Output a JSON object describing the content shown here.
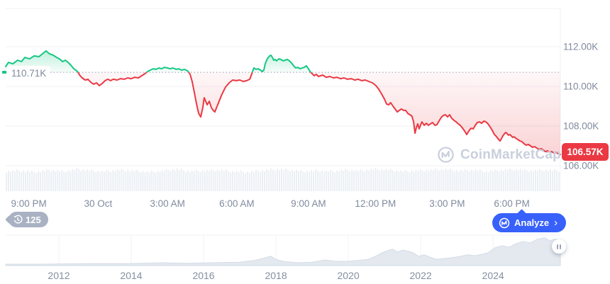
{
  "watermark": {
    "text": "CoinMarketCap"
  },
  "history_badge": {
    "count": "125"
  },
  "analyze_button": {
    "label": "Analyze",
    "chevron": "›"
  },
  "colors": {
    "up": "#16C784",
    "down": "#EA3943",
    "accent_blue": "#3861FB",
    "badge_gray": "#A9B2C3",
    "axis_text": "#808A9D",
    "grid": "#F0F2F6",
    "baseline_dotted": "#A3ADBF",
    "watermark": "#C9CFDC",
    "volume": "#EBEFF4",
    "navigator_fill": "#E4E9F0",
    "navigator_stroke": "#D5DCE6"
  },
  "chart_data": {
    "type": "line",
    "main": {
      "type": "area-line",
      "unit": "K",
      "baseline_price": 110.71,
      "baseline_label": "110.71K",
      "last_price": 106.57,
      "last_price_label": "106.57K",
      "grid": "horizontal-only",
      "ylim": [
        104.7,
        113.9
      ],
      "t_range_hours": [
        0,
        24
      ],
      "y_ticks": [
        {
          "label": "112.00K",
          "price": 112
        },
        {
          "label": "110.00K",
          "price": 110
        },
        {
          "label": "108.00K",
          "price": 108
        },
        {
          "label": "106.00K",
          "price": 106
        }
      ],
      "x_ticks": [
        {
          "label": "9:00 PM",
          "t": 1.0
        },
        {
          "label": "30 Oct",
          "t": 4.0
        },
        {
          "label": "3:00 AM",
          "t": 7.0
        },
        {
          "label": "6:00 AM",
          "t": 10.0
        },
        {
          "label": "9:00 AM",
          "t": 13.1
        },
        {
          "label": "12:00 PM",
          "t": 16.0
        },
        {
          "label": "3:00 PM",
          "t": 19.1
        },
        {
          "label": "6:00 PM",
          "t": 21.9
        }
      ],
      "series": [
        [
          0.0,
          111.0
        ],
        [
          0.12,
          111.21
        ],
        [
          0.31,
          111.14
        ],
        [
          0.52,
          111.32
        ],
        [
          0.68,
          111.25
        ],
        [
          0.83,
          111.46
        ],
        [
          1.04,
          111.39
        ],
        [
          1.23,
          111.54
        ],
        [
          1.44,
          111.5
        ],
        [
          1.66,
          111.71
        ],
        [
          1.75,
          111.79
        ],
        [
          1.9,
          111.64
        ],
        [
          2.06,
          111.57
        ],
        [
          2.21,
          111.46
        ],
        [
          2.36,
          111.36
        ],
        [
          2.46,
          111.25
        ],
        [
          2.58,
          111.32
        ],
        [
          2.7,
          111.21
        ],
        [
          2.82,
          111.07
        ],
        [
          2.95,
          110.89
        ],
        [
          3.07,
          110.79
        ],
        [
          3.13,
          110.71
        ],
        [
          3.22,
          110.54
        ],
        [
          3.31,
          110.43
        ],
        [
          3.44,
          110.32
        ],
        [
          3.56,
          110.36
        ],
        [
          3.68,
          110.21
        ],
        [
          3.81,
          110.11
        ],
        [
          3.93,
          110.18
        ],
        [
          4.05,
          110.04
        ],
        [
          4.17,
          110.14
        ],
        [
          4.3,
          110.29
        ],
        [
          4.42,
          110.36
        ],
        [
          4.54,
          110.29
        ],
        [
          4.66,
          110.36
        ],
        [
          4.82,
          110.32
        ],
        [
          4.97,
          110.39
        ],
        [
          5.13,
          110.36
        ],
        [
          5.28,
          110.43
        ],
        [
          5.43,
          110.39
        ],
        [
          5.59,
          110.46
        ],
        [
          5.74,
          110.43
        ],
        [
          5.89,
          110.54
        ],
        [
          6.02,
          110.64
        ],
        [
          6.14,
          110.75
        ],
        [
          6.26,
          110.82
        ],
        [
          6.38,
          110.89
        ],
        [
          6.51,
          110.86
        ],
        [
          6.63,
          110.93
        ],
        [
          6.75,
          110.89
        ],
        [
          6.87,
          110.96
        ],
        [
          7.0,
          110.93
        ],
        [
          7.12,
          110.89
        ],
        [
          7.24,
          110.93
        ],
        [
          7.37,
          110.86
        ],
        [
          7.49,
          110.89
        ],
        [
          7.61,
          110.82
        ],
        [
          7.73,
          110.86
        ],
        [
          7.86,
          110.79
        ],
        [
          7.92,
          110.71
        ],
        [
          7.98,
          110.61
        ],
        [
          8.07,
          110.25
        ],
        [
          8.16,
          109.71
        ],
        [
          8.26,
          109.11
        ],
        [
          8.35,
          108.64
        ],
        [
          8.44,
          108.46
        ],
        [
          8.53,
          108.93
        ],
        [
          8.59,
          109.43
        ],
        [
          8.72,
          109.07
        ],
        [
          8.81,
          109.25
        ],
        [
          8.9,
          108.93
        ],
        [
          8.96,
          108.82
        ],
        [
          9.05,
          108.71
        ],
        [
          9.21,
          109.18
        ],
        [
          9.36,
          109.61
        ],
        [
          9.51,
          109.96
        ],
        [
          9.67,
          110.18
        ],
        [
          9.82,
          110.32
        ],
        [
          9.97,
          110.29
        ],
        [
          10.13,
          110.32
        ],
        [
          10.28,
          110.25
        ],
        [
          10.43,
          110.29
        ],
        [
          10.56,
          110.36
        ],
        [
          10.65,
          110.64
        ],
        [
          10.74,
          110.93
        ],
        [
          10.83,
          110.86
        ],
        [
          10.93,
          110.89
        ],
        [
          11.02,
          110.82
        ],
        [
          11.11,
          110.75
        ],
        [
          11.17,
          110.82
        ],
        [
          11.23,
          111.14
        ],
        [
          11.32,
          111.39
        ],
        [
          11.42,
          111.54
        ],
        [
          11.48,
          111.57
        ],
        [
          11.54,
          111.46
        ],
        [
          11.6,
          111.32
        ],
        [
          11.66,
          111.36
        ],
        [
          11.72,
          111.29
        ],
        [
          11.82,
          111.39
        ],
        [
          11.91,
          111.36
        ],
        [
          12.0,
          111.29
        ],
        [
          12.09,
          111.32
        ],
        [
          12.18,
          111.36
        ],
        [
          12.28,
          111.29
        ],
        [
          12.37,
          111.18
        ],
        [
          12.46,
          111.04
        ],
        [
          12.55,
          110.93
        ],
        [
          12.64,
          110.96
        ],
        [
          12.74,
          110.89
        ],
        [
          12.83,
          110.93
        ],
        [
          12.92,
          110.96
        ],
        [
          13.01,
          111.04
        ],
        [
          13.1,
          110.89
        ],
        [
          13.17,
          110.75
        ],
        [
          13.26,
          110.64
        ],
        [
          13.35,
          110.54
        ],
        [
          13.44,
          110.61
        ],
        [
          13.53,
          110.5
        ],
        [
          13.72,
          110.57
        ],
        [
          13.87,
          110.46
        ],
        [
          14.03,
          110.5
        ],
        [
          14.18,
          110.43
        ],
        [
          14.33,
          110.46
        ],
        [
          14.49,
          110.39
        ],
        [
          14.64,
          110.43
        ],
        [
          14.79,
          110.36
        ],
        [
          14.95,
          110.39
        ],
        [
          15.1,
          110.32
        ],
        [
          15.25,
          110.36
        ],
        [
          15.41,
          110.29
        ],
        [
          15.56,
          110.32
        ],
        [
          15.71,
          110.25
        ],
        [
          15.87,
          110.18
        ],
        [
          16.02,
          110.04
        ],
        [
          16.14,
          109.86
        ],
        [
          16.27,
          109.61
        ],
        [
          16.39,
          109.36
        ],
        [
          16.48,
          109.11
        ],
        [
          16.57,
          109.07
        ],
        [
          16.66,
          109.18
        ],
        [
          16.76,
          109.0
        ],
        [
          16.85,
          108.86
        ],
        [
          16.94,
          108.71
        ],
        [
          17.03,
          108.79
        ],
        [
          17.12,
          108.86
        ],
        [
          17.22,
          108.79
        ],
        [
          17.31,
          108.79
        ],
        [
          17.4,
          108.64
        ],
        [
          17.49,
          108.57
        ],
        [
          17.58,
          108.5
        ],
        [
          17.65,
          108.21
        ],
        [
          17.71,
          107.64
        ],
        [
          17.77,
          107.93
        ],
        [
          17.83,
          108.11
        ],
        [
          17.89,
          107.86
        ],
        [
          17.95,
          108.04
        ],
        [
          18.01,
          108.21
        ],
        [
          18.11,
          108.04
        ],
        [
          18.2,
          108.14
        ],
        [
          18.29,
          108.04
        ],
        [
          18.38,
          108.11
        ],
        [
          18.47,
          108.18
        ],
        [
          18.57,
          108.04
        ],
        [
          18.66,
          108.07
        ],
        [
          18.75,
          108.25
        ],
        [
          18.84,
          108.43
        ],
        [
          18.94,
          108.54
        ],
        [
          19.03,
          108.57
        ],
        [
          19.12,
          108.46
        ],
        [
          19.21,
          108.57
        ],
        [
          19.3,
          108.39
        ],
        [
          19.4,
          108.29
        ],
        [
          19.49,
          108.21
        ],
        [
          19.58,
          108.11
        ],
        [
          19.67,
          108.04
        ],
        [
          19.77,
          107.89
        ],
        [
          19.86,
          107.75
        ],
        [
          19.95,
          107.57
        ],
        [
          20.04,
          107.75
        ],
        [
          20.13,
          107.89
        ],
        [
          20.23,
          107.86
        ],
        [
          20.32,
          108.04
        ],
        [
          20.41,
          108.18
        ],
        [
          20.5,
          108.21
        ],
        [
          20.59,
          108.14
        ],
        [
          20.69,
          108.25
        ],
        [
          20.78,
          108.21
        ],
        [
          20.87,
          108.11
        ],
        [
          20.96,
          107.96
        ],
        [
          21.05,
          107.79
        ],
        [
          21.15,
          107.57
        ],
        [
          21.24,
          107.46
        ],
        [
          21.33,
          107.32
        ],
        [
          21.39,
          107.25
        ],
        [
          21.45,
          107.36
        ],
        [
          21.51,
          107.5
        ],
        [
          21.58,
          107.61
        ],
        [
          21.64,
          107.68
        ],
        [
          21.7,
          107.61
        ],
        [
          21.76,
          107.54
        ],
        [
          21.82,
          107.57
        ],
        [
          21.88,
          107.5
        ],
        [
          21.94,
          107.43
        ],
        [
          22.0,
          107.46
        ],
        [
          22.07,
          107.39
        ],
        [
          22.16,
          107.32
        ],
        [
          22.25,
          107.25
        ],
        [
          22.34,
          107.21
        ],
        [
          22.43,
          107.11
        ],
        [
          22.52,
          107.04
        ],
        [
          22.62,
          107.07
        ],
        [
          22.71,
          107.0
        ],
        [
          22.8,
          106.93
        ],
        [
          22.89,
          106.96
        ],
        [
          22.98,
          106.89
        ],
        [
          23.08,
          106.82
        ],
        [
          23.17,
          106.86
        ],
        [
          23.26,
          106.79
        ],
        [
          23.35,
          106.71
        ],
        [
          23.45,
          106.75
        ],
        [
          23.54,
          106.68
        ],
        [
          23.63,
          106.71
        ],
        [
          23.72,
          106.64
        ],
        [
          23.81,
          106.68
        ],
        [
          23.9,
          106.61
        ],
        [
          24.0,
          106.57
        ]
      ]
    },
    "volume_profile": [
      28,
      29,
      27,
      30,
      28,
      31,
      29,
      28,
      30,
      29,
      27,
      29,
      31,
      28,
      29,
      30,
      28,
      27,
      29,
      31,
      30,
      28,
      29,
      28,
      30,
      29,
      31,
      30,
      28,
      29,
      30,
      31,
      29,
      30,
      28,
      30,
      31,
      29,
      30,
      29
    ],
    "navigator": {
      "type": "area",
      "year_range": [
        2010.53,
        2025.86
      ],
      "year_ticks": [
        {
          "label": "2012",
          "year": 2012
        },
        {
          "label": "2014",
          "year": 2014
        },
        {
          "label": "2016",
          "year": 2016
        },
        {
          "label": "2018",
          "year": 2018
        },
        {
          "label": "2020",
          "year": 2020
        },
        {
          "label": "2022",
          "year": 2022
        },
        {
          "label": "2024",
          "year": 2024
        }
      ],
      "series": [
        [
          2010.53,
          0.05
        ],
        [
          2011.5,
          0.05
        ],
        [
          2012.7,
          0.07
        ],
        [
          2013.9,
          0.07
        ],
        [
          2014.9,
          0.1
        ],
        [
          2015.5,
          0.08
        ],
        [
          2016.2,
          0.1
        ],
        [
          2017.0,
          0.12
        ],
        [
          2017.4,
          0.18
        ],
        [
          2017.7,
          0.28
        ],
        [
          2017.86,
          0.33
        ],
        [
          2018.0,
          0.22
        ],
        [
          2018.2,
          0.15
        ],
        [
          2018.6,
          0.1
        ],
        [
          2019.0,
          0.12
        ],
        [
          2019.35,
          0.2
        ],
        [
          2019.65,
          0.15
        ],
        [
          2020.0,
          0.15
        ],
        [
          2020.25,
          0.18
        ],
        [
          2020.55,
          0.22
        ],
        [
          2020.75,
          0.33
        ],
        [
          2020.93,
          0.45
        ],
        [
          2021.08,
          0.53
        ],
        [
          2021.22,
          0.58
        ],
        [
          2021.36,
          0.48
        ],
        [
          2021.51,
          0.55
        ],
        [
          2021.67,
          0.5
        ],
        [
          2021.8,
          0.45
        ],
        [
          2021.94,
          0.33
        ],
        [
          2022.1,
          0.38
        ],
        [
          2022.25,
          0.3
        ],
        [
          2022.45,
          0.22
        ],
        [
          2022.64,
          0.25
        ],
        [
          2022.88,
          0.28
        ],
        [
          2023.11,
          0.33
        ],
        [
          2023.31,
          0.38
        ],
        [
          2023.5,
          0.35
        ],
        [
          2023.7,
          0.4
        ],
        [
          2023.86,
          0.45
        ],
        [
          2024.05,
          0.63
        ],
        [
          2024.25,
          0.7
        ],
        [
          2024.44,
          0.65
        ],
        [
          2024.64,
          0.78
        ],
        [
          2024.83,
          0.85
        ],
        [
          2025.03,
          0.8
        ],
        [
          2025.22,
          0.93
        ],
        [
          2025.42,
          0.98
        ],
        [
          2025.57,
          0.88
        ],
        [
          2025.71,
          0.93
        ],
        [
          2025.86,
          0.9
        ]
      ]
    }
  }
}
